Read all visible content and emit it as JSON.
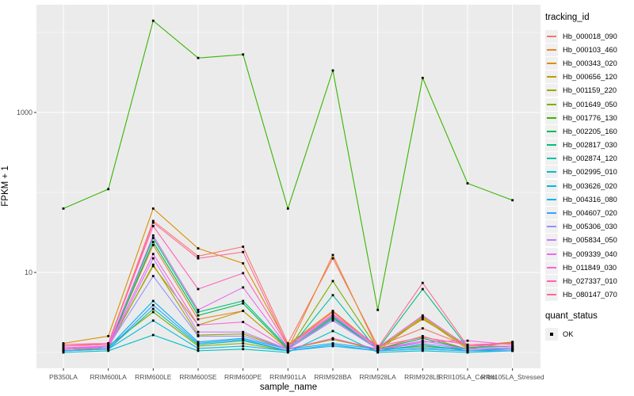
{
  "chart_data": {
    "type": "line",
    "title": "",
    "xlabel": "sample_name",
    "ylabel": "FPKM + 1",
    "y_scale": "log10",
    "y_ticks": [
      10,
      1000
    ],
    "y_tick_labels": [
      "10",
      "1000"
    ],
    "y_minor_gridlines": [
      1,
      100,
      10000
    ],
    "ylim_log10": [
      -0.2,
      4.35
    ],
    "grid": "on",
    "legend_position": "right",
    "panel_bg": "#EBEBEB",
    "gridline_color": "#FFFFFF",
    "point_color": "#000000",
    "categories": [
      "PB350LA",
      "RRIM600LA",
      "RRIM600LE",
      "RRIM600SE",
      "RRIM600PE",
      "RRIM901LA",
      "RRIM928BA",
      "RRIM928LA",
      "RRIM928LE",
      "RRII105LA_Control",
      "RRII105LA_Stressed"
    ],
    "series": [
      {
        "name": "Hb_000018_090",
        "color": "#F8766D",
        "values": [
          1.2,
          1.3,
          44,
          16,
          21,
          1.3,
          15,
          1.2,
          2.0,
          1.2,
          1.2
        ]
      },
      {
        "name": "Hb_000103_460",
        "color": "#E9842C",
        "values": [
          1.1,
          1.2,
          22,
          2.6,
          3.3,
          1.1,
          16.5,
          1.1,
          1.6,
          1.1,
          1.15
        ]
      },
      {
        "name": "Hb_000343_020",
        "color": "#D89000",
        "values": [
          1.3,
          1.6,
          63,
          20,
          13,
          1.25,
          3.3,
          1.15,
          2.6,
          1.2,
          1.35
        ]
      },
      {
        "name": "Hb_000656_120",
        "color": "#C09B00",
        "values": [
          1.1,
          1.2,
          12,
          2.2,
          3.3,
          1.1,
          1.5,
          1.05,
          2.7,
          1.1,
          1.35
        ]
      },
      {
        "name": "Hb_001159_220",
        "color": "#A3A500",
        "values": [
          1.05,
          1.15,
          12.5,
          1.65,
          1.7,
          1.1,
          1.45,
          1.1,
          2.8,
          1.15,
          1.2
        ]
      },
      {
        "name": "Hb_001649_050",
        "color": "#7CAE00",
        "values": [
          1.1,
          1.2,
          3.2,
          1.2,
          1.3,
          1.05,
          7.8,
          1.1,
          1.2,
          1.1,
          1.1
        ]
      },
      {
        "name": "Hb_001776_130",
        "color": "#39B600",
        "values": [
          63,
          110,
          14000,
          4800,
          5300,
          63,
          3350,
          3.4,
          2700,
          130,
          80
        ]
      },
      {
        "name": "Hb_002205_160",
        "color": "#00BB4E",
        "values": [
          1.1,
          1.15,
          24,
          2.9,
          4.1,
          1.1,
          2.7,
          1.1,
          1.5,
          1.1,
          1.1
        ]
      },
      {
        "name": "Hb_002817_030",
        "color": "#00BF7D",
        "values": [
          1.1,
          1.2,
          27,
          3.2,
          4.4,
          1.15,
          2.8,
          1.1,
          6.2,
          1.15,
          1.2
        ]
      },
      {
        "name": "Hb_002874_120",
        "color": "#00C1A3",
        "values": [
          1.05,
          1.1,
          3.5,
          1.25,
          1.4,
          1.05,
          5.2,
          1.05,
          1.25,
          1.05,
          1.1
        ]
      },
      {
        "name": "Hb_002995_010",
        "color": "#00BFC4",
        "values": [
          1.0,
          1.05,
          1.65,
          1.05,
          1.1,
          1.0,
          1.85,
          1.0,
          1.05,
          1.0,
          1.05
        ]
      },
      {
        "name": "Hb_003626_020",
        "color": "#00BAE0",
        "values": [
          1.05,
          1.1,
          2.5,
          1.12,
          1.2,
          1.05,
          1.2,
          1.05,
          1.1,
          1.05,
          1.05
        ]
      },
      {
        "name": "Hb_004316_080",
        "color": "#00B0F6",
        "values": [
          1.1,
          1.15,
          4.4,
          1.35,
          1.5,
          1.1,
          1.3,
          1.1,
          1.15,
          1.1,
          1.1
        ]
      },
      {
        "name": "Hb_004607_020",
        "color": "#35A2FF",
        "values": [
          1.05,
          1.1,
          3.9,
          1.3,
          1.45,
          1.05,
          1.25,
          1.05,
          1.1,
          1.05,
          1.05
        ]
      },
      {
        "name": "Hb_005306_030",
        "color": "#9590FF",
        "values": [
          1.1,
          1.2,
          9.0,
          1.6,
          1.6,
          1.1,
          2.5,
          1.1,
          1.3,
          1.1,
          1.1
        ]
      },
      {
        "name": "Hb_005834_050",
        "color": "#C77CFF",
        "values": [
          1.1,
          1.15,
          15,
          1.8,
          1.8,
          1.1,
          2.6,
          1.1,
          1.4,
          1.1,
          1.15
        ]
      },
      {
        "name": "Hb_009339_040",
        "color": "#E76BF3",
        "values": [
          1.15,
          1.2,
          29,
          3.4,
          6.5,
          1.15,
          2.9,
          1.15,
          2.9,
          1.2,
          1.2
        ]
      },
      {
        "name": "Hb_011849_030",
        "color": "#FA62DB",
        "values": [
          1.1,
          1.2,
          17,
          2.2,
          2.4,
          1.1,
          1.5,
          1.1,
          1.35,
          1.4,
          1.25
        ]
      },
      {
        "name": "Hb_027337_010",
        "color": "#FF62BC",
        "values": [
          1.26,
          1.3,
          38,
          6.2,
          9.8,
          1.2,
          3.0,
          1.2,
          1.55,
          1.25,
          1.3
        ]
      },
      {
        "name": "Hb_080147_070",
        "color": "#FF6A98",
        "values": [
          1.2,
          1.25,
          42,
          15,
          18,
          1.2,
          3.2,
          1.15,
          7.4,
          1.2,
          1.3
        ]
      }
    ]
  },
  "legend": {
    "color_title": "tracking_id",
    "shape_title": "quant_status",
    "shape_items": [
      {
        "label": "OK"
      }
    ]
  }
}
